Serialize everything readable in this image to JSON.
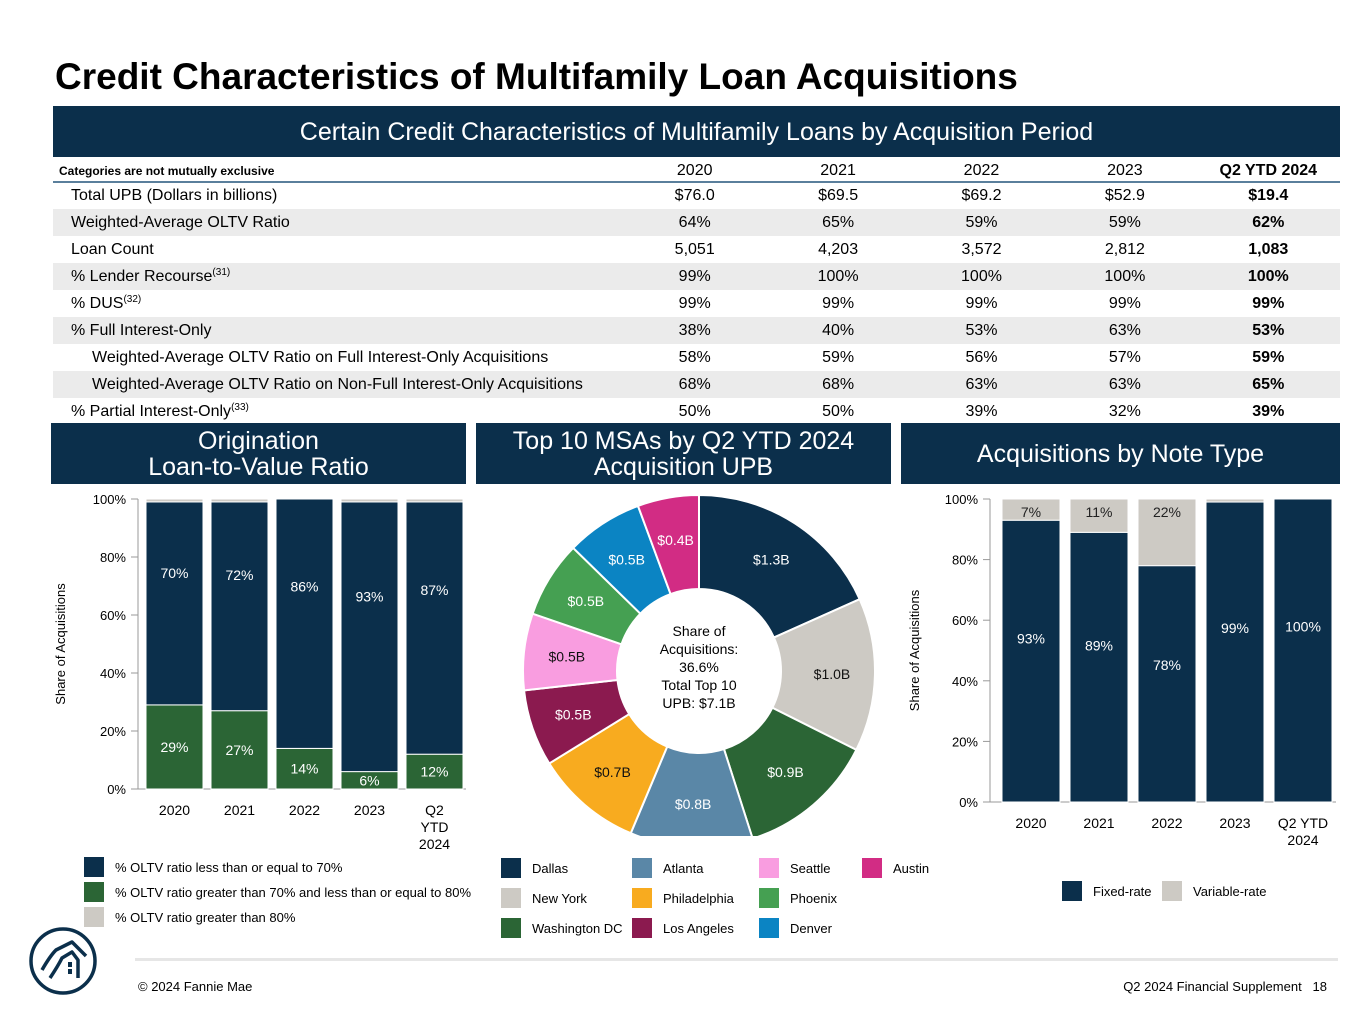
{
  "title": "Credit Characteristics of Multifamily Loan Acquisitions",
  "table_banner": "Certain Credit Characteristics of Multifamily Loans by Acquisition Period",
  "table": {
    "header_label": "Categories are not mutually exclusive",
    "columns": [
      "2020",
      "2021",
      "2022",
      "2023",
      "Q2 YTD 2024"
    ],
    "rows": [
      {
        "label": "Total UPB (Dollars in billions)",
        "note": "",
        "values": [
          "$76.0",
          "$69.5",
          "$69.2",
          "$52.9",
          "$19.4"
        ]
      },
      {
        "label": "Weighted-Average OLTV Ratio",
        "note": "",
        "values": [
          "64%",
          "65%",
          "59%",
          "59%",
          "62%"
        ]
      },
      {
        "label": "Loan Count",
        "note": "",
        "values": [
          "5,051",
          "4,203",
          "3,572",
          "2,812",
          "1,083"
        ]
      },
      {
        "label": "% Lender Recourse",
        "note": "(31)",
        "values": [
          "99%",
          "100%",
          "100%",
          "100%",
          "100%"
        ]
      },
      {
        "label": "% DUS",
        "note": "(32)",
        "values": [
          "99%",
          "99%",
          "99%",
          "99%",
          "99%"
        ]
      },
      {
        "label": "% Full Interest-Only",
        "note": "",
        "values": [
          "38%",
          "40%",
          "53%",
          "63%",
          "53%"
        ]
      },
      {
        "label": "Weighted-Average OLTV Ratio on Full Interest-Only Acquisitions",
        "note": "",
        "values": [
          "58%",
          "59%",
          "56%",
          "57%",
          "59%"
        ]
      },
      {
        "label": "Weighted-Average OLTV Ratio on Non-Full Interest-Only Acquisitions",
        "note": "",
        "values": [
          "68%",
          "68%",
          "63%",
          "63%",
          "65%"
        ]
      },
      {
        "label": "% Partial Interest-Only",
        "note": "(33)",
        "values": [
          "50%",
          "50%",
          "39%",
          "32%",
          "39%"
        ]
      }
    ]
  },
  "panels": {
    "oltv_title": "Origination\nLoan-to-Value Ratio",
    "msa_title": "Top 10 MSAs by Q2 YTD 2024\nAcquisition UPB",
    "note_title": "Acquisitions by Note Type"
  },
  "colors": {
    "navy": "#0b2f4b",
    "green": "#2b6535",
    "gray": "#cdcac4",
    "steel": "#5a87a7",
    "orange": "#f8ab1f",
    "maroon": "#8b1a4f",
    "pink": "#f99de0",
    "ltgreen": "#45a052",
    "blue": "#0b84c3",
    "magenta": "#d22c84"
  },
  "chart_data": [
    {
      "type": "bar",
      "stacked": true,
      "categories": [
        "2020",
        "2021",
        "2022",
        "2023",
        "Q2 YTD 2024"
      ],
      "ylabel": "Share of Acquisitions",
      "ylim": [
        0,
        100
      ],
      "yticks": [
        "0%",
        "20%",
        "40%",
        "60%",
        "80%",
        "100%"
      ],
      "series": [
        {
          "name": "% OLTV ratio less than or equal to 70%",
          "color": "#0b2f4b",
          "values": [
            70,
            72,
            86,
            93,
            87
          ],
          "labels": [
            "70%",
            "72%",
            "86%",
            "93%",
            "87%"
          ]
        },
        {
          "name": "% OLTV ratio greater than 70% and less than or equal to 80%",
          "color": "#2b6535",
          "values": [
            29,
            27,
            14,
            6,
            12
          ],
          "labels": [
            "29%",
            "27%",
            "14%",
            "6%",
            "12%"
          ]
        },
        {
          "name": "% OLTV ratio greater than 80%",
          "color": "#cdcac4",
          "values": [
            1,
            1,
            0,
            1,
            1
          ],
          "labels": [
            "",
            "",
            "",
            "",
            ""
          ]
        }
      ],
      "legend_position": "bottom"
    },
    {
      "type": "pie",
      "donut": true,
      "center_text": [
        "Share of",
        "Acquisitions:",
        "36.6%",
        "Total Top 10",
        "UPB: $7.1B"
      ],
      "slices": [
        {
          "name": "Dallas",
          "value": 1.3,
          "label": "$1.3B",
          "color": "#0b2f4b"
        },
        {
          "name": "New York",
          "value": 1.0,
          "label": "$1.0B",
          "color": "#cdcac4"
        },
        {
          "name": "Washington DC",
          "value": 0.9,
          "label": "$0.9B",
          "color": "#2b6535"
        },
        {
          "name": "Atlanta",
          "value": 0.8,
          "label": "$0.8B",
          "color": "#5a87a7"
        },
        {
          "name": "Philadelphia",
          "value": 0.7,
          "label": "$0.7B",
          "color": "#f8ab1f"
        },
        {
          "name": "Los Angeles",
          "value": 0.5,
          "label": "$0.5B",
          "color": "#8b1a4f"
        },
        {
          "name": "Seattle",
          "value": 0.5,
          "label": "$0.5B",
          "color": "#f99de0"
        },
        {
          "name": "Phoenix",
          "value": 0.5,
          "label": "$0.5B",
          "color": "#45a052"
        },
        {
          "name": "Denver",
          "value": 0.5,
          "label": "$0.5B",
          "color": "#0b84c3"
        },
        {
          "name": "Austin",
          "value": 0.4,
          "label": "$0.4B",
          "color": "#d22c84"
        }
      ],
      "legend_position": "bottom"
    },
    {
      "type": "bar",
      "stacked": true,
      "categories": [
        "2020",
        "2021",
        "2022",
        "2023",
        "Q2 YTD 2024"
      ],
      "ylabel": "Share of Acquisitions",
      "ylim": [
        0,
        100
      ],
      "yticks": [
        "0%",
        "20%",
        "40%",
        "60%",
        "80%",
        "100%"
      ],
      "series": [
        {
          "name": "Fixed-rate",
          "color": "#0b2f4b",
          "values": [
            93,
            89,
            78,
            99,
            100
          ],
          "labels": [
            "93%",
            "89%",
            "78%",
            "99%",
            "100%"
          ]
        },
        {
          "name": "Variable-rate",
          "color": "#cdcac4",
          "values": [
            7,
            11,
            22,
            1,
            0
          ],
          "labels": [
            "7%",
            "11%",
            "22%",
            "",
            ""
          ]
        }
      ],
      "legend_position": "bottom"
    }
  ],
  "footer": {
    "left": "© 2024 Fannie Mae",
    "right": "Q2 2024 Financial Supplement   18"
  }
}
